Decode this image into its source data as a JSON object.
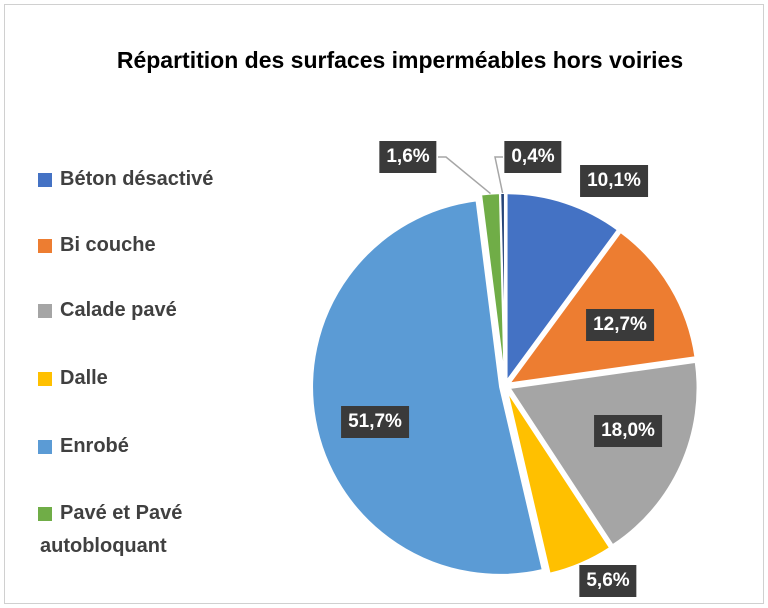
{
  "chart_data": {
    "type": "pie",
    "title": "Répartition des surfaces imperméables hors voiries",
    "categories": [
      "Béton désactivé",
      "Bi couche",
      "Calade pavé",
      "Dalle",
      "Enrobé",
      "Pavé et Pavé autobloquant",
      null
    ],
    "values": [
      10.1,
      12.7,
      18.0,
      5.6,
      51.7,
      1.6,
      0.4
    ],
    "value_labels": [
      "10,1%",
      "12,7%",
      "18,0%",
      "5,6%",
      "51,7%",
      "1,6%",
      "0,4%"
    ],
    "colors": [
      "#4472c4",
      "#ed7d31",
      "#a5a5a5",
      "#ffc000",
      "#5b9bd5",
      "#70ad47",
      "#264478"
    ],
    "legend": "left"
  }
}
